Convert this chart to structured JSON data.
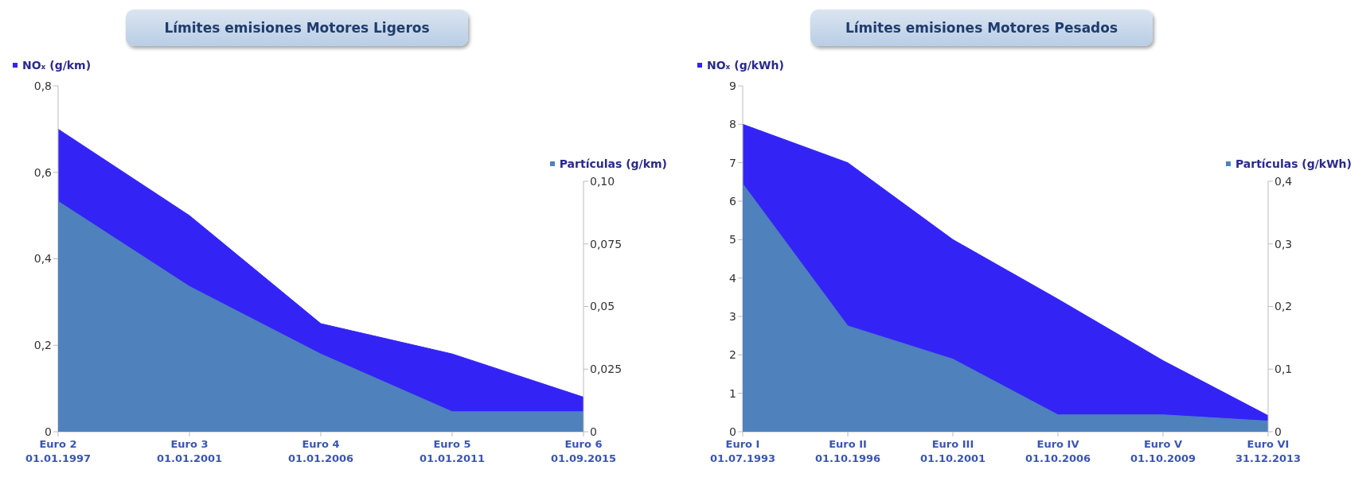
{
  "chart_data": [
    {
      "type": "area",
      "title": "Límites emisiones Motores Ligeros",
      "categories": [
        "Euro 2\n01.01.1997",
        "Euro 3\n01.01.2001",
        "Euro 4\n01.01.2006",
        "Euro 5\n01.01.2011",
        "Euro 6\n01.09.2015"
      ],
      "series": [
        {
          "name": "NOₓ (g/km)",
          "color": "#3324f5",
          "values": [
            0.7,
            0.5,
            0.25,
            0.18,
            0.08
          ]
        },
        {
          "name": "Partículas (g/km)",
          "color": "#4f81bd",
          "axis": "y2",
          "values": [
            0.092,
            0.058,
            0.031,
            0.008,
            0.008
          ]
        }
      ],
      "ylim": [
        0,
        0.8
      ],
      "yticks": [
        0,
        {
          "value": 0.2,
          "label": "0,2"
        },
        {
          "value": 0.4,
          "label": "0,4"
        },
        {
          "value": 0.6,
          "label": "0,6"
        },
        {
          "value": 0.8,
          "label": "0,8"
        }
      ],
      "y2lim": [
        0,
        0.1
      ],
      "y2ticks": [
        0,
        {
          "value": 0.025,
          "label": "0,025"
        },
        {
          "value": 0.05,
          "label": "0,05"
        },
        {
          "value": 0.075,
          "label": "0,075"
        },
        {
          "value": 0.1,
          "label": "0,10"
        }
      ],
      "legend": "top",
      "grid": false
    },
    {
      "type": "area",
      "title": "Límites emisiones Motores Pesados",
      "categories": [
        "Euro I\n01.07.1993",
        "Euro II\n01.10.1996",
        "Euro III\n01.10.2001",
        "Euro IV\n01.10.2006",
        "Euro V\n01.10.2009",
        "Euro VI\n31.12.2013"
      ],
      "series": [
        {
          "name": "NOₓ (g/kWh)",
          "color": "#3324f5",
          "values": [
            8,
            7,
            5,
            3.45,
            1.85,
            0.42
          ]
        },
        {
          "name": "Partículas (g/kWh)",
          "color": "#4f81bd",
          "axis": "y2",
          "values": [
            0.396,
            0.169,
            0.116,
            0.027,
            0.027,
            0.017
          ]
        }
      ],
      "ylim": [
        0,
        9
      ],
      "yticks": [
        0,
        1,
        2,
        3,
        4,
        5,
        6,
        7,
        8,
        9
      ],
      "y2lim": [
        0,
        0.4
      ],
      "y2ticks": [
        0,
        {
          "value": 0.1,
          "label": "0,1"
        },
        {
          "value": 0.2,
          "label": "0,2"
        },
        {
          "value": 0.3,
          "label": "0,3"
        },
        {
          "value": 0.4,
          "label": "0,4"
        }
      ],
      "legend": "top",
      "grid": false
    }
  ]
}
